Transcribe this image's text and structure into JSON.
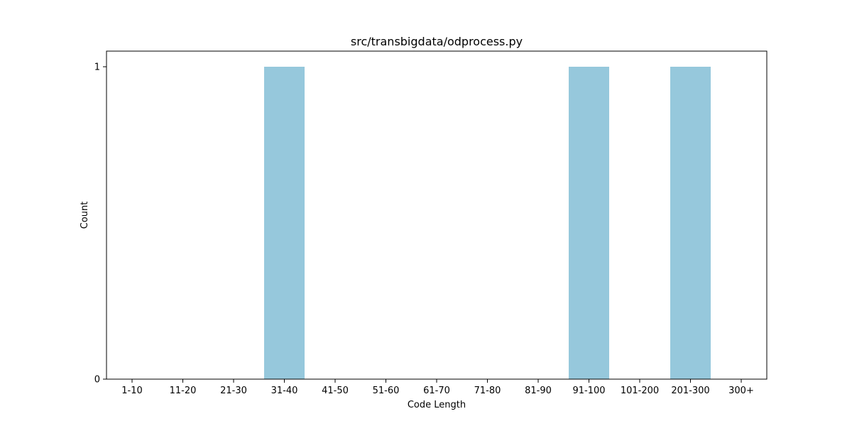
{
  "chart_data": {
    "type": "bar",
    "title": "src/transbigdata/odprocess.py",
    "xlabel": "Code Length",
    "ylabel": "Count",
    "categories": [
      "1-10",
      "11-20",
      "21-30",
      "31-40",
      "41-50",
      "51-60",
      "61-70",
      "71-80",
      "81-90",
      "91-100",
      "101-200",
      "201-300",
      "300+"
    ],
    "values": [
      0,
      0,
      0,
      1,
      0,
      0,
      0,
      0,
      0,
      1,
      0,
      1,
      0
    ],
    "yticks": [
      0,
      1
    ],
    "ylim": [
      0,
      1.05
    ],
    "bar_color": "#96c8dc",
    "grid": false
  }
}
